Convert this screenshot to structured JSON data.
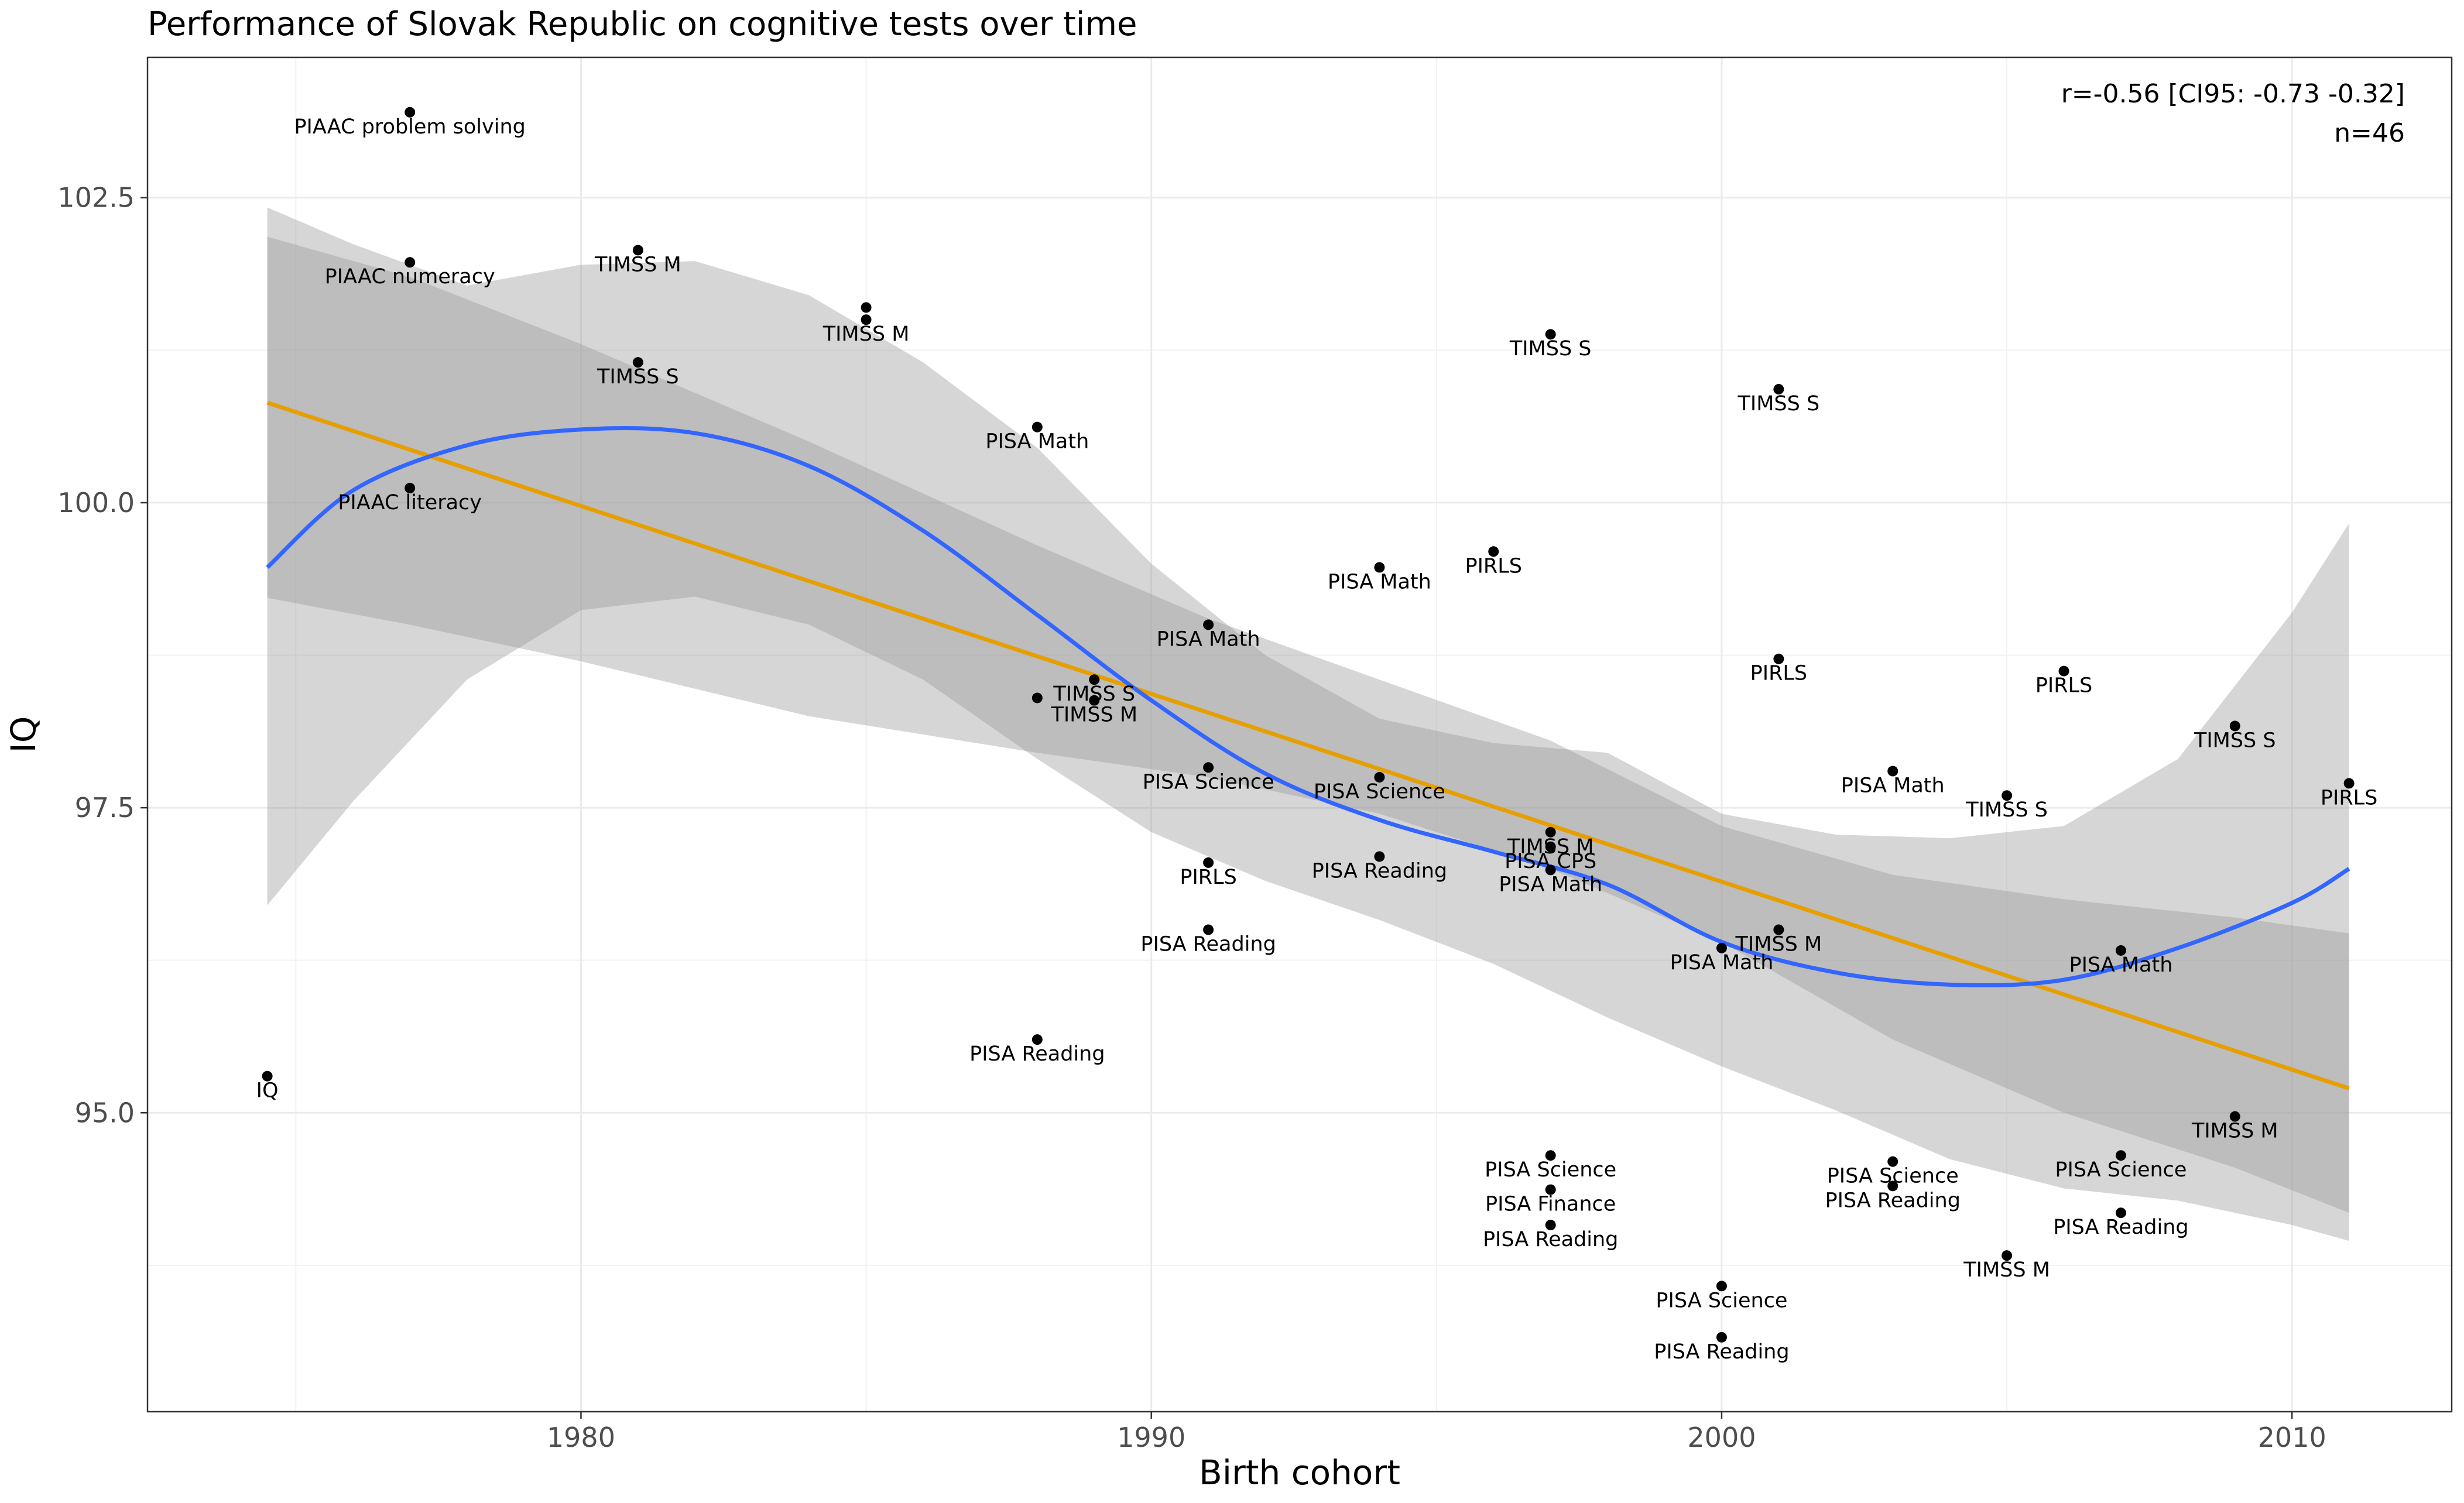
{
  "chart_data": {
    "type": "scatter",
    "title": "Performance of Slovak Republic on cognitive tests over time",
    "xlabel": "Birth cohort",
    "ylabel": "IQ",
    "xlim": [
      1972.4,
      2012.8
    ],
    "ylim": [
      92.55,
      103.65
    ],
    "x_ticks": [
      1980,
      1990,
      2000,
      2010
    ],
    "x_tick_labels": [
      "1980",
      "1990",
      "2000",
      "2010"
    ],
    "y_ticks": [
      95.0,
      97.5,
      100.0,
      102.5
    ],
    "y_tick_labels": [
      "95.0",
      "97.5",
      "100.0",
      "102.5"
    ],
    "grid": true,
    "annotation_lines": [
      "r=-0.56 [CI95: -0.73 -0.32]",
      "n=46"
    ],
    "annotation_placement": "top-right",
    "colors": {
      "points": "#000000",
      "linear_fit": "#E69F00",
      "loess_fit": "#3366FF",
      "ribbon": "#999999",
      "grid": "#ebebeb",
      "panel_border": "#333333"
    },
    "points": [
      {
        "label": "IQ",
        "x": 1974.5,
        "y": 95.3
      },
      {
        "label": "PIAAC problem solving",
        "x": 1977.0,
        "y": 103.2
      },
      {
        "label": "PIAAC numeracy",
        "x": 1977.0,
        "y": 101.97
      },
      {
        "label": "PIAAC literacy",
        "x": 1977.0,
        "y": 100.12
      },
      {
        "label": "TIMSS M",
        "x": 1981.0,
        "y": 102.07
      },
      {
        "label": "TIMSS S",
        "x": 1981.0,
        "y": 101.15
      },
      {
        "label": "",
        "x": 1985.0,
        "y": 101.6
      },
      {
        "label": "TIMSS M",
        "x": 1985.0,
        "y": 101.5
      },
      {
        "label": "PISA Math",
        "x": 1988.0,
        "y": 100.62
      },
      {
        "label": "",
        "x": 1988.0,
        "y": 98.4
      },
      {
        "label": "PISA Reading",
        "x": 1988.0,
        "y": 95.6
      },
      {
        "label": "TIMSS S",
        "x": 1989.0,
        "y": 98.55
      },
      {
        "label": "TIMSS M",
        "x": 1989.0,
        "y": 98.38
      },
      {
        "label": "PISA Math",
        "x": 1991.0,
        "y": 99.0
      },
      {
        "label": "PISA Science",
        "x": 1991.0,
        "y": 97.83
      },
      {
        "label": "PIRLS",
        "x": 1991.0,
        "y": 97.05
      },
      {
        "label": "PISA Reading",
        "x": 1991.0,
        "y": 96.5
      },
      {
        "label": "PISA Math",
        "x": 1994.0,
        "y": 99.47
      },
      {
        "label": "PISA Science",
        "x": 1994.0,
        "y": 97.75
      },
      {
        "label": "PISA Reading",
        "x": 1994.0,
        "y": 97.1
      },
      {
        "label": "PIRLS",
        "x": 1996.0,
        "y": 99.6
      },
      {
        "label": "TIMSS S",
        "x": 1997.0,
        "y": 101.38
      },
      {
        "label": "TIMSS M",
        "x": 1997.0,
        "y": 97.3
      },
      {
        "label": "PISA CPS",
        "x": 1997.0,
        "y": 97.18
      },
      {
        "label": "PISA Math",
        "x": 1997.0,
        "y": 96.99
      },
      {
        "label": "PISA Science",
        "x": 1997.0,
        "y": 94.65
      },
      {
        "label": "PISA Finance",
        "x": 1997.0,
        "y": 94.37
      },
      {
        "label": "PISA Reading",
        "x": 1997.0,
        "y": 94.08
      },
      {
        "label": "PISA Math",
        "x": 2000.0,
        "y": 96.35
      },
      {
        "label": "PISA Science",
        "x": 2000.0,
        "y": 93.58
      },
      {
        "label": "PISA Reading",
        "x": 2000.0,
        "y": 93.16
      },
      {
        "label": "TIMSS S",
        "x": 2001.0,
        "y": 100.93
      },
      {
        "label": "PIRLS",
        "x": 2001.0,
        "y": 98.72
      },
      {
        "label": "TIMSS M",
        "x": 2001.0,
        "y": 96.5
      },
      {
        "label": "PISA Math",
        "x": 2003.0,
        "y": 97.8
      },
      {
        "label": "PISA Science",
        "x": 2003.0,
        "y": 94.6
      },
      {
        "label": "PISA Reading",
        "x": 2003.0,
        "y": 94.4
      },
      {
        "label": "TIMSS S",
        "x": 2005.0,
        "y": 97.6
      },
      {
        "label": "TIMSS M",
        "x": 2005.0,
        "y": 93.83
      },
      {
        "label": "PIRLS",
        "x": 2006.0,
        "y": 98.62
      },
      {
        "label": "PISA Math",
        "x": 2007.0,
        "y": 96.33
      },
      {
        "label": "PISA Science",
        "x": 2007.0,
        "y": 94.65
      },
      {
        "label": "PISA Reading",
        "x": 2007.0,
        "y": 94.18
      },
      {
        "label": "TIMSS S",
        "x": 2009.0,
        "y": 98.17
      },
      {
        "label": "TIMSS M",
        "x": 2009.0,
        "y": 94.97
      },
      {
        "label": "PIRLS",
        "x": 2011.0,
        "y": 97.7
      }
    ],
    "series": [
      {
        "type": "linear_fit",
        "color": "#E69F00",
        "x": [
          1974.5,
          2011.0
        ],
        "y": [
          100.82,
          95.2
        ],
        "ci_lower": [
          99.22,
          94.18
        ],
        "ci_upper": [
          102.18,
          96.47
        ],
        "ci_x": [
          1974.5,
          1977.0,
          1980.0,
          1984.0,
          1988.0,
          1991.0,
          1994.0,
          1997.0,
          2000.0,
          2003.0,
          2006.0,
          2009.0,
          2011.0
        ],
        "ci_lo": [
          99.22,
          99.0,
          98.7,
          98.25,
          97.95,
          97.75,
          97.45,
          97.0,
          96.4,
          95.6,
          95.0,
          94.55,
          94.18
        ],
        "ci_hi": [
          102.18,
          101.85,
          101.3,
          100.5,
          99.65,
          99.05,
          98.55,
          98.05,
          97.35,
          96.95,
          96.75,
          96.6,
          96.47
        ]
      },
      {
        "type": "loess_fit",
        "color": "#3366FF",
        "x": [
          1974.5,
          1976.0,
          1978.0,
          1980.0,
          1982.0,
          1984.0,
          1986.0,
          1988.0,
          1990.0,
          1992.0,
          1994.0,
          1996.0,
          1998.0,
          2000.0,
          2002.0,
          2004.0,
          2006.0,
          2008.0,
          2010.0,
          2011.0
        ],
        "y": [
          99.47,
          100.1,
          100.47,
          100.6,
          100.57,
          100.3,
          99.77,
          99.08,
          98.38,
          97.78,
          97.4,
          97.14,
          96.87,
          96.4,
          96.15,
          96.05,
          96.09,
          96.35,
          96.72,
          97.0
        ],
        "ci_lower": [
          96.7,
          97.55,
          98.55,
          99.12,
          99.23,
          99.0,
          98.55,
          97.9,
          97.3,
          96.9,
          96.58,
          96.22,
          95.78,
          95.38,
          95.02,
          94.62,
          94.38,
          94.28,
          94.08,
          93.95
        ],
        "ci_upper": [
          102.42,
          102.12,
          101.78,
          101.95,
          101.98,
          101.7,
          101.15,
          100.45,
          99.5,
          98.75,
          98.23,
          98.03,
          97.95,
          97.45,
          97.28,
          97.25,
          97.35,
          97.9,
          99.1,
          99.83
        ]
      }
    ]
  }
}
